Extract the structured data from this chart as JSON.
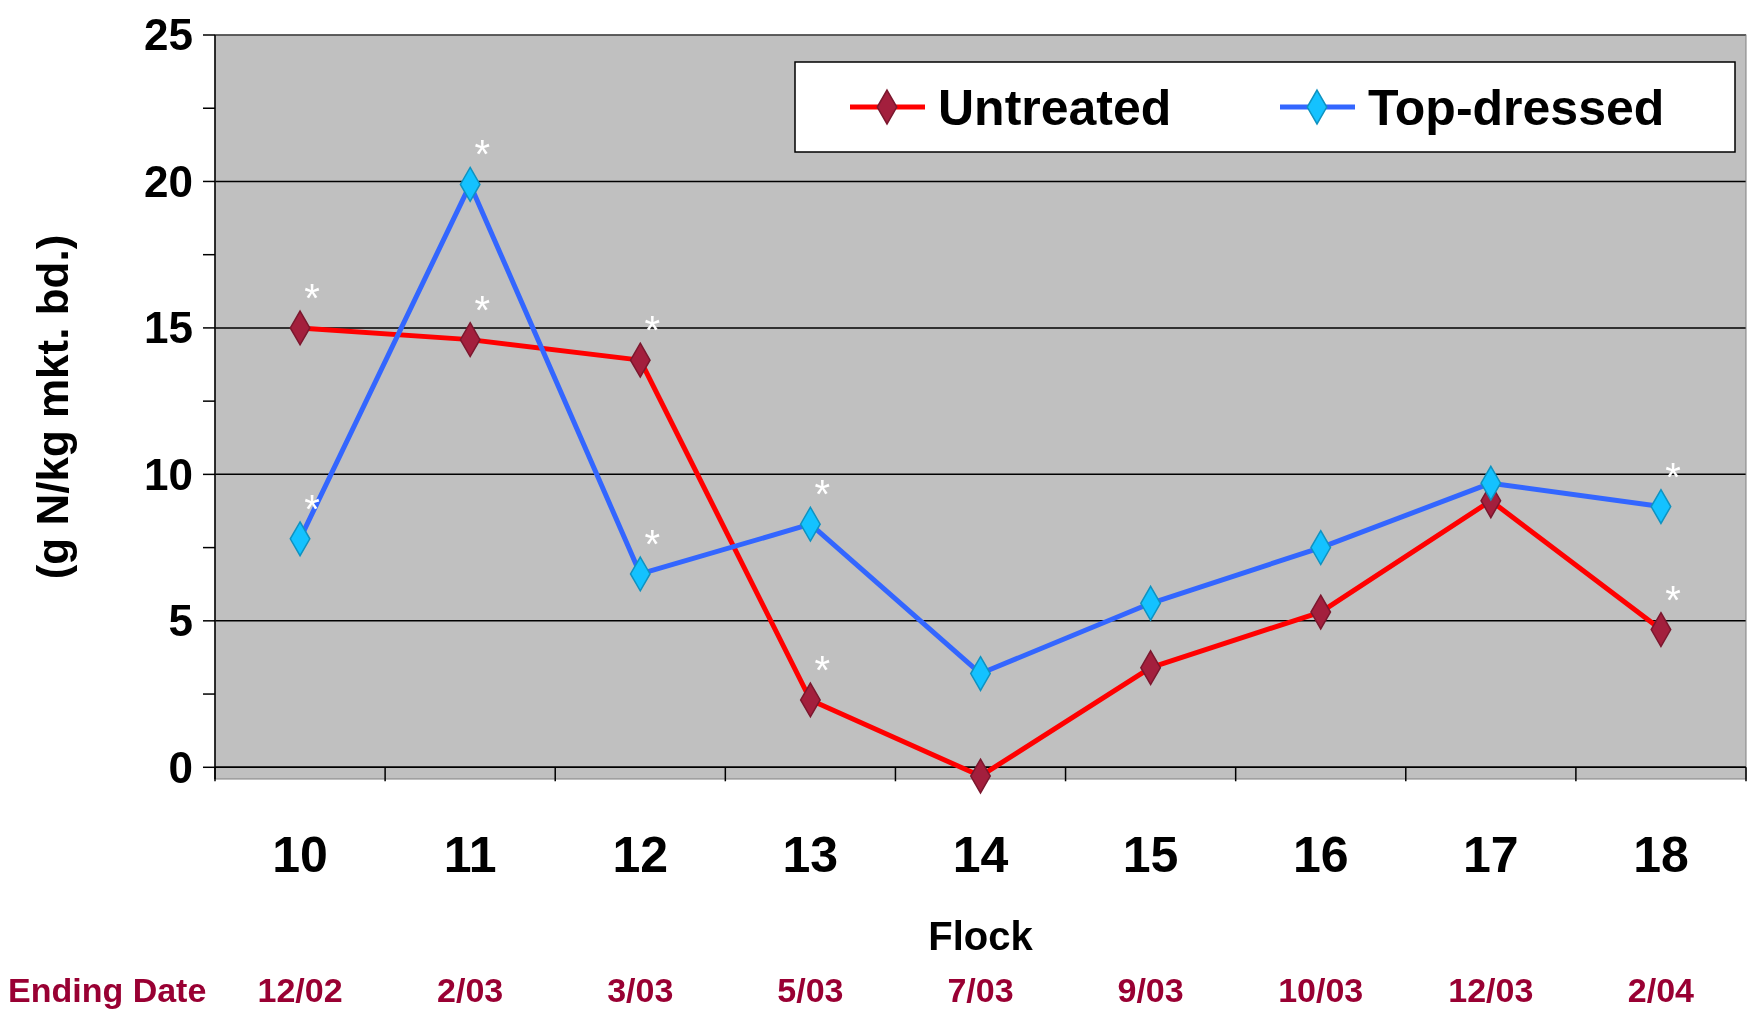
{
  "chart_data": {
    "type": "line",
    "xlabel": "Flock",
    "ylabel": "(g N/kg mkt. bd.)",
    "categories": [
      "10",
      "11",
      "12",
      "13",
      "14",
      "15",
      "16",
      "17",
      "18"
    ],
    "series": [
      {
        "name": "Untreated",
        "color": "#ff0000",
        "values": [
          15.0,
          14.6,
          13.9,
          2.3,
          -0.3,
          3.4,
          5.3,
          9.1,
          4.7
        ]
      },
      {
        "name": "Top-dressed",
        "color": "#3366ff",
        "values": [
          7.8,
          19.9,
          6.6,
          8.3,
          3.2,
          5.6,
          7.5,
          9.7,
          8.9
        ]
      }
    ],
    "ylim": [
      -0.4,
      25
    ],
    "yticks": [
      0,
      {
        "value": 2.5,
        "label": null
      },
      5,
      {
        "value": 7.5,
        "label": null
      },
      10,
      {
        "value": 12.5,
        "label": null
      },
      15,
      {
        "value": 17.5,
        "label": null
      },
      20,
      {
        "value": 22.5,
        "label": null
      },
      25
    ],
    "grid": "y",
    "legend": "top right",
    "marker": "diamond",
    "line_style": "solid",
    "annotations": [
      "Ending Date",
      "12/02",
      "2/03",
      "3/03",
      "5/03",
      "7/03",
      "9/03",
      "10/03",
      "12/03",
      "2/04",
      {
        "text": "*",
        "x": "10",
        "y": 15.0
      },
      {
        "text": "*",
        "x": "11",
        "y": 14.6
      },
      {
        "text": "*",
        "x": "12",
        "y": 13.9
      },
      {
        "text": "*",
        "x": "13",
        "y": 2.3
      },
      {
        "text": "*",
        "x": "18",
        "y": 4.7
      },
      {
        "text": "*",
        "x": "10",
        "y": 7.8
      },
      {
        "text": "*",
        "x": "11",
        "y": 19.9
      },
      {
        "text": "*",
        "x": "12",
        "y": 6.6
      },
      {
        "text": "*",
        "x": "13",
        "y": 8.3
      },
      {
        "text": "*",
        "x": "18",
        "y": 8.9
      }
    ]
  }
}
